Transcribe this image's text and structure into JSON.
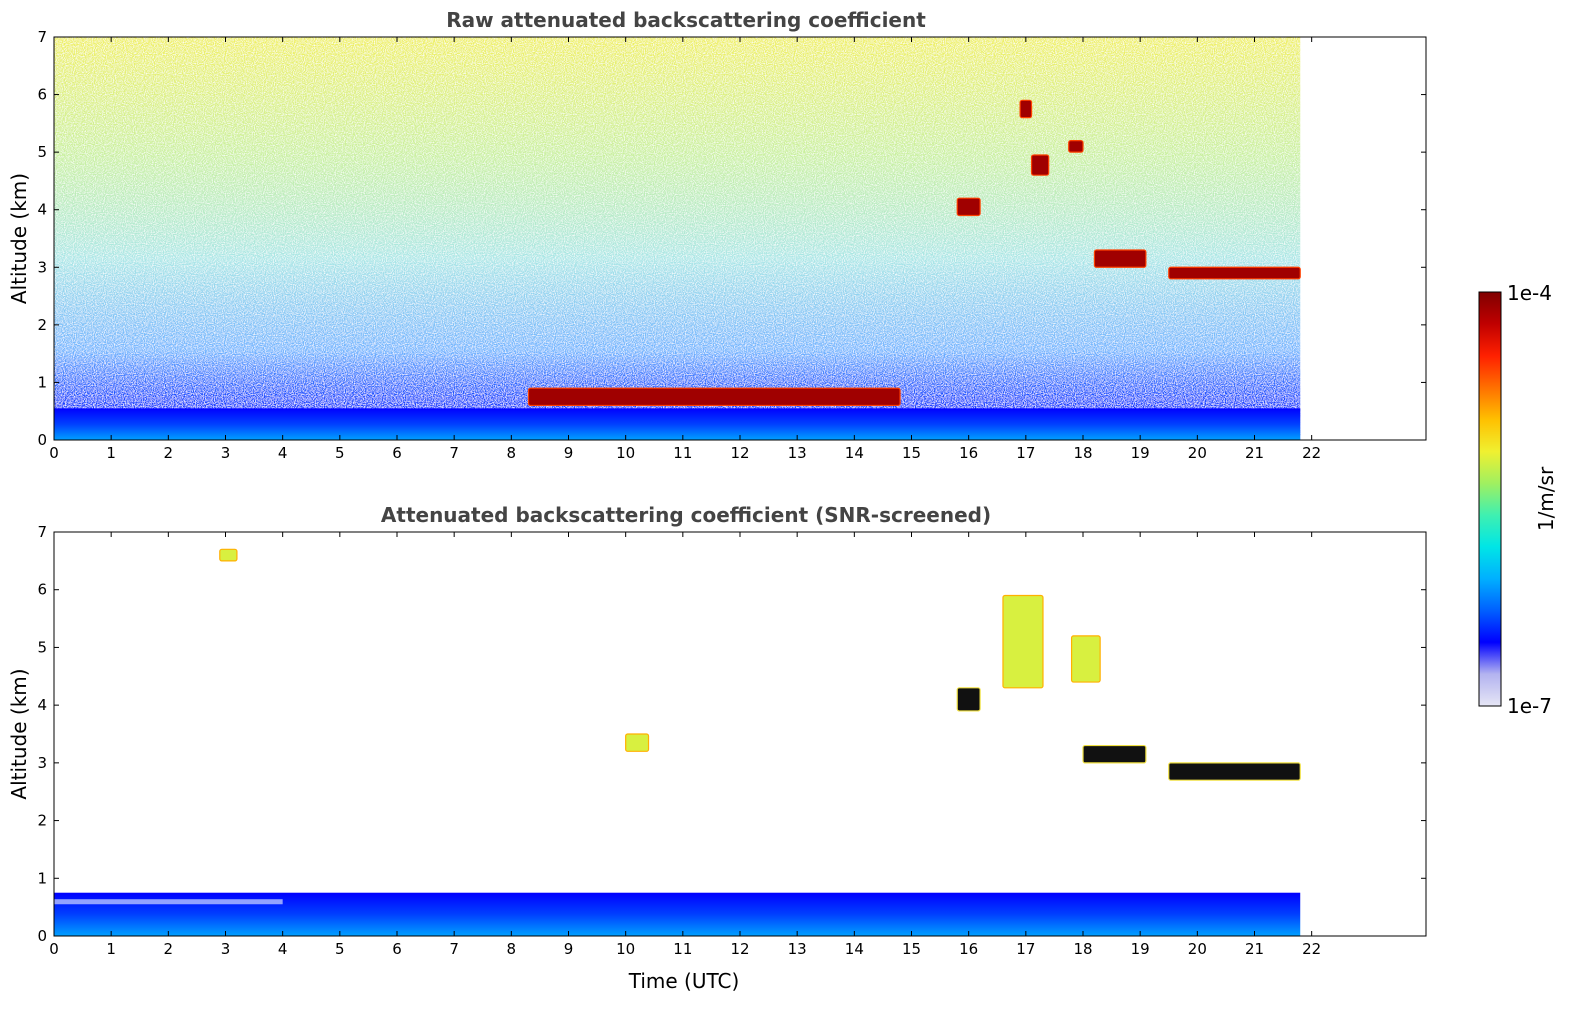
{
  "figure": {
    "colormap": [
      "#e6e6f5",
      "#b3b3f0",
      "#0000ff",
      "#0060ff",
      "#00b0ff",
      "#00e6e6",
      "#40f0b0",
      "#a0f060",
      "#f0f030",
      "#ffc000",
      "#ff7000",
      "#ff2000",
      "#c00000",
      "#800000"
    ],
    "colorbar": {
      "label": "1/m/sr",
      "min_label": "1e-7",
      "max_label": "1e-4",
      "scale": "log",
      "range": [
        1e-07,
        0.0001
      ]
    }
  },
  "chart_data": [
    {
      "type": "heatmap",
      "title": "Raw attenuated backscattering coefficient",
      "xlabel": "",
      "ylabel": "Altitude (km)",
      "xlim": [
        0,
        24
      ],
      "ylim": [
        0,
        7
      ],
      "data_end_hour": 21.8,
      "xticks": [
        "0",
        "1",
        "2",
        "3",
        "4",
        "5",
        "6",
        "7",
        "8",
        "9",
        "10",
        "11",
        "12",
        "13",
        "14",
        "15",
        "16",
        "17",
        "18",
        "19",
        "20",
        "21",
        "22"
      ],
      "yticks": [
        "0",
        "1",
        "2",
        "3",
        "4",
        "5",
        "6",
        "7"
      ],
      "features": [
        {
          "kind": "boundary_layer",
          "x": [
            0,
            21.8
          ],
          "top_km": 0.55
        },
        {
          "kind": "cloud",
          "x": [
            8.3,
            14.8
          ],
          "y": [
            0.6,
            0.9
          ]
        },
        {
          "kind": "cloud",
          "x": [
            15.8,
            16.2
          ],
          "y": [
            3.9,
            4.2
          ]
        },
        {
          "kind": "cloud",
          "x": [
            16.9,
            17.1
          ],
          "y": [
            5.6,
            5.9
          ]
        },
        {
          "kind": "cloud",
          "x": [
            17.1,
            17.4
          ],
          "y": [
            4.6,
            4.95
          ]
        },
        {
          "kind": "cloud",
          "x": [
            17.75,
            18.0
          ],
          "y": [
            5.0,
            5.2
          ]
        },
        {
          "kind": "cloud",
          "x": [
            18.2,
            19.1
          ],
          "y": [
            3.0,
            3.3
          ]
        },
        {
          "kind": "cloud",
          "x": [
            19.5,
            21.8
          ],
          "y": [
            2.8,
            3.0
          ]
        }
      ]
    },
    {
      "type": "heatmap",
      "title": "Attenuated backscattering coefficient (SNR-screened)",
      "xlabel": "Time (UTC)",
      "ylabel": "Altitude (km)",
      "xlim": [
        0,
        24
      ],
      "ylim": [
        0,
        7
      ],
      "data_end_hour": 21.8,
      "xticks": [
        "0",
        "1",
        "2",
        "3",
        "4",
        "5",
        "6",
        "7",
        "8",
        "9",
        "10",
        "11",
        "12",
        "13",
        "14",
        "15",
        "16",
        "17",
        "18",
        "19",
        "20",
        "21",
        "22"
      ],
      "yticks": [
        "0",
        "1",
        "2",
        "3",
        "4",
        "5",
        "6",
        "7"
      ],
      "features": [
        {
          "kind": "boundary_layer",
          "x": [
            0,
            21.8
          ],
          "top_km": 0.75
        },
        {
          "kind": "cloud",
          "x": [
            2.9,
            3.2
          ],
          "y": [
            6.5,
            6.7
          ]
        },
        {
          "kind": "cloud",
          "x": [
            10.0,
            10.4
          ],
          "y": [
            3.2,
            3.5
          ]
        },
        {
          "kind": "cloud",
          "x": [
            15.8,
            16.2
          ],
          "y": [
            3.9,
            4.3
          ]
        },
        {
          "kind": "cloud",
          "x": [
            16.6,
            17.3
          ],
          "y": [
            4.3,
            5.9
          ]
        },
        {
          "kind": "cloud",
          "x": [
            17.8,
            18.3
          ],
          "y": [
            4.4,
            5.2
          ]
        },
        {
          "kind": "cloud",
          "x": [
            18.0,
            19.1
          ],
          "y": [
            3.0,
            3.3
          ]
        },
        {
          "kind": "cloud",
          "x": [
            19.5,
            21.8
          ],
          "y": [
            2.7,
            3.0
          ]
        }
      ]
    }
  ]
}
